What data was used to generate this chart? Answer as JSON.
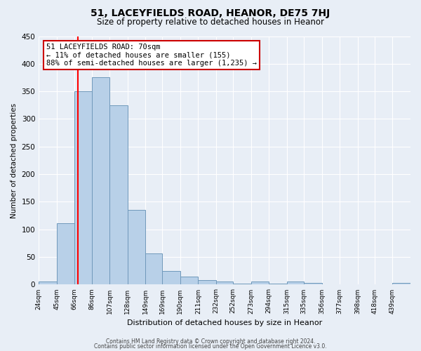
{
  "title": "51, LACEYFIELDS ROAD, HEANOR, DE75 7HJ",
  "subtitle": "Size of property relative to detached houses in Heanor",
  "xlabel": "Distribution of detached houses by size in Heanor",
  "ylabel": "Number of detached properties",
  "bar_values": [
    5,
    111,
    350,
    375,
    325,
    135,
    57,
    25,
    14,
    8,
    5,
    2,
    5,
    2,
    5,
    3,
    0,
    0,
    0,
    0,
    3
  ],
  "bin_edges": [
    24,
    45,
    66,
    86,
    107,
    128,
    149,
    169,
    190,
    211,
    232,
    252,
    273,
    294,
    315,
    335,
    356,
    377,
    398,
    418,
    439,
    460
  ],
  "bin_labels": [
    "24sqm",
    "45sqm",
    "66sqm",
    "86sqm",
    "107sqm",
    "128sqm",
    "149sqm",
    "169sqm",
    "190sqm",
    "211sqm",
    "232sqm",
    "252sqm",
    "273sqm",
    "294sqm",
    "315sqm",
    "335sqm",
    "356sqm",
    "377sqm",
    "398sqm",
    "418sqm",
    "439sqm"
  ],
  "bar_color": "#b8d0e8",
  "bar_edge_color": "#7099bb",
  "red_line_x": 70,
  "annotation_title": "51 LACEYFIELDS ROAD: 70sqm",
  "annotation_line1": "← 11% of detached houses are smaller (155)",
  "annotation_line2": "88% of semi-detached houses are larger (1,235) →",
  "annotation_box_color": "#ffffff",
  "annotation_box_edge": "#cc0000",
  "ylim": [
    0,
    450
  ],
  "yticks": [
    0,
    50,
    100,
    150,
    200,
    250,
    300,
    350,
    400,
    450
  ],
  "bg_color": "#e8eef6",
  "grid_color": "#ffffff",
  "footer1": "Contains HM Land Registry data © Crown copyright and database right 2024.",
  "footer2": "Contains public sector information licensed under the Open Government Licence v3.0."
}
